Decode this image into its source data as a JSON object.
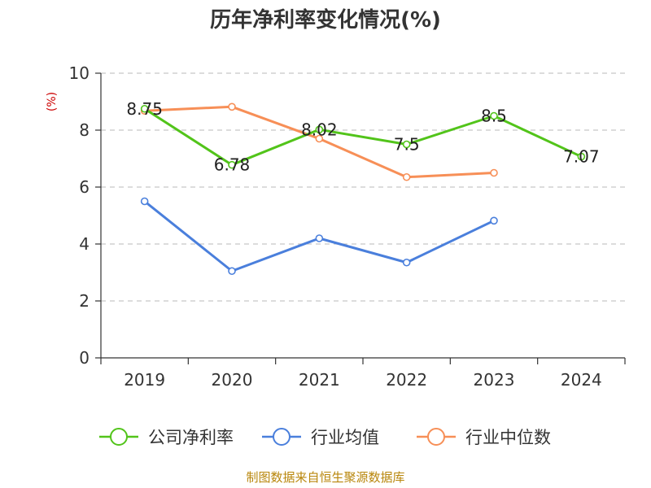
{
  "chart_data": {
    "type": "line",
    "title": "历年净利率变化情况(%)",
    "ylabel": "(%)",
    "ylim": [
      0,
      10
    ],
    "yticks": [
      0,
      2,
      4,
      6,
      8,
      10
    ],
    "categories": [
      "2019",
      "2020",
      "2021",
      "2022",
      "2023",
      "2024"
    ],
    "grid": "horizontal-dashed",
    "legend_position": "bottom",
    "series": [
      {
        "name": "公司净利率",
        "color": "#52c41a",
        "values": [
          8.75,
          6.78,
          8.02,
          7.5,
          8.5,
          7.07
        ],
        "labels": [
          "8.75",
          "6.78",
          "8.02",
          "7.5",
          "8.5",
          "7.07"
        ]
      },
      {
        "name": "行业均值",
        "color": "#4a7fdc",
        "values": [
          5.5,
          3.05,
          4.2,
          3.35,
          4.82,
          null
        ]
      },
      {
        "name": "行业中位数",
        "color": "#f78f57",
        "values": [
          8.68,
          8.82,
          7.7,
          6.35,
          6.5,
          null
        ]
      }
    ],
    "source": "制图数据来自恒生聚源数据库"
  }
}
